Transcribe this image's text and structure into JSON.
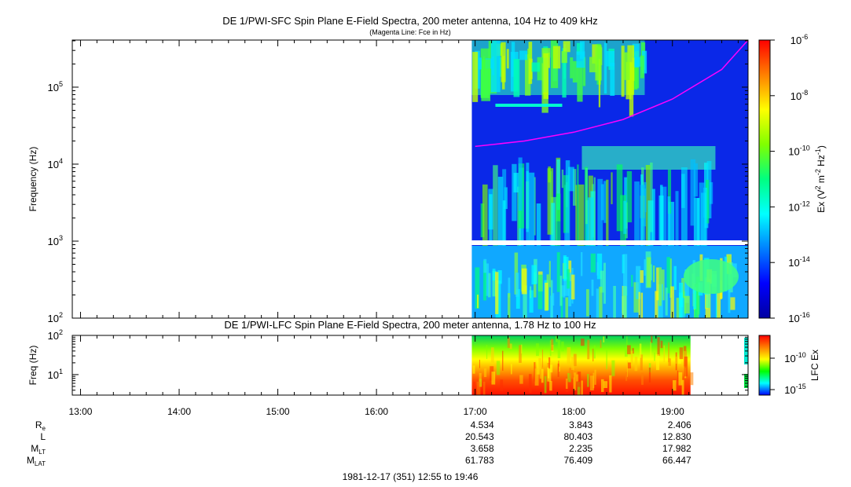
{
  "top_panel": {
    "title": "DE 1/PWI-SFC  Spin Plane E-Field Spectra, 200 meter antenna, 104 Hz to 409 kHz",
    "subtitle": "(Magenta Line: Fce in Hz)",
    "ylabel": "Frequency (Hz)",
    "colorbar_label_parts": [
      "Ex (V",
      "2",
      " m",
      "-2",
      " Hz",
      "-1",
      ")"
    ]
  },
  "bottom_panel": {
    "title": "DE 1/PWI-LFC  Spin Plane E-Field Spectra, 200 meter antenna, 1.78 Hz to 100 Hz",
    "ylabel": "Freq (Hz)",
    "colorbar_label": "LFC Ex"
  },
  "footer": {
    "date_range": "1981-12-17 (351) 12:55 to 19:46"
  },
  "ephemeris": {
    "rows": [
      {
        "label": "R",
        "sub": "e",
        "values": [
          "4.534",
          "3.843",
          "2.406"
        ]
      },
      {
        "label": "L",
        "sub": "",
        "values": [
          "20.543",
          "80.403",
          "12.830"
        ]
      },
      {
        "label": "M",
        "sub": "LT",
        "values": [
          "3.658",
          "2.235",
          "17.982"
        ]
      },
      {
        "label": "M",
        "sub": "LAT",
        "values": [
          "61.783",
          "76.409",
          "66.447"
        ]
      }
    ]
  },
  "chart_data": [
    {
      "type": "heatmap",
      "name": "SFC spectrogram",
      "x_ticks": [
        "13:00",
        "14:00",
        "15:00",
        "16:00",
        "17:00",
        "18:00",
        "19:00"
      ],
      "x_range": [
        "12:55",
        "19:46"
      ],
      "data_start": "16:58",
      "y_scale": "log",
      "y_range": [
        100,
        409000
      ],
      "y_tick_base": "10",
      "y_tick_exps": [
        "2",
        "3",
        "4",
        "5"
      ],
      "colorbar": {
        "scale": "log",
        "range": [
          1e-16,
          1e-06
        ],
        "tick_base": "10",
        "tick_exps": [
          "-6",
          "-8",
          "-10",
          "-12",
          "-14",
          "-16"
        ],
        "colors": [
          "#0000a0",
          "#0000ff",
          "#0080ff",
          "#00ffff",
          "#00ff80",
          "#80ff00",
          "#ffff00",
          "#ff8000",
          "#ff0000"
        ]
      },
      "line": {
        "name": "Fce",
        "color": "#ff00ff",
        "x": [
          "17:00",
          "17:30",
          "18:00",
          "18:30",
          "19:00",
          "19:30",
          "19:46"
        ],
        "y": [
          17000,
          20000,
          26000,
          38000,
          70000,
          170000,
          409000
        ]
      }
    },
    {
      "type": "heatmap",
      "name": "LFC spectrogram",
      "x_ticks": [
        "13:00",
        "14:00",
        "15:00",
        "16:00",
        "17:00",
        "18:00",
        "19:00"
      ],
      "data_start": "16:58",
      "data_end": "19:11",
      "y_scale": "log",
      "y_range": [
        3,
        100
      ],
      "y_tick_base": "10",
      "y_tick_exps": [
        "1",
        "2"
      ],
      "colorbar": {
        "scale": "log",
        "tick_base": "10",
        "tick_exps": [
          "-10",
          "-15"
        ],
        "colors": [
          "#0000ff",
          "#00ffff",
          "#00ff00",
          "#ffff00",
          "#ff8000",
          "#ff0000"
        ]
      }
    }
  ]
}
